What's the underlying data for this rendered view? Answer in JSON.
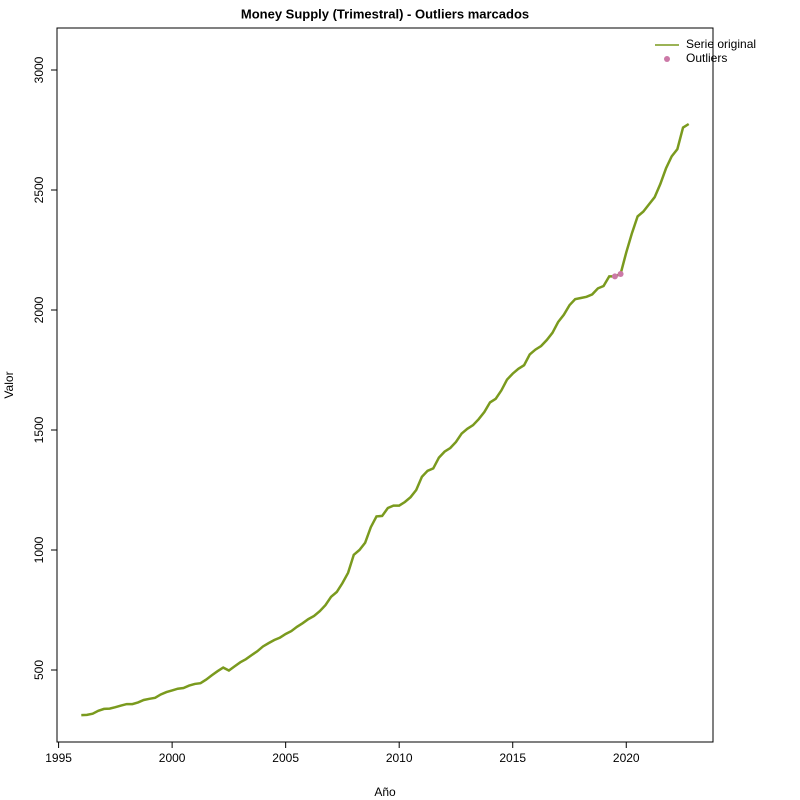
{
  "chart_data": {
    "type": "line",
    "title": "Money Supply (Trimestral) - Outliers marcados",
    "x_label": "Año",
    "y_label": "Valor",
    "xlim": [
      1994.93,
      2023.82
    ],
    "ylim": [
      200,
      3175
    ],
    "xticks": [
      1995,
      2000,
      2005,
      2010,
      2015,
      2020
    ],
    "yticks": [
      500,
      1000,
      1500,
      2000,
      2500,
      3000
    ],
    "legend": "top-right",
    "series": [
      {
        "name": "Serie original",
        "color": "#7a9a1e",
        "kind": "line",
        "x": [
          1996,
          1996.25,
          1996.5,
          1996.75,
          1997,
          1997.25,
          1997.5,
          1997.75,
          1998,
          1998.25,
          1998.5,
          1998.75,
          1999,
          1999.25,
          1999.5,
          1999.75,
          2000,
          2000.25,
          2000.5,
          2000.75,
          2001,
          2001.25,
          2001.5,
          2001.75,
          2002,
          2002.25,
          2002.5,
          2002.75,
          2003,
          2003.25,
          2003.5,
          2003.75,
          2004,
          2004.25,
          2004.5,
          2004.75,
          2005,
          2005.25,
          2005.5,
          2005.75,
          2006,
          2006.25,
          2006.5,
          2006.75,
          2007,
          2007.25,
          2007.5,
          2007.75,
          2008,
          2008.25,
          2008.5,
          2008.75,
          2009,
          2009.25,
          2009.5,
          2009.75,
          2010,
          2010.25,
          2010.5,
          2010.75,
          2011,
          2011.25,
          2011.5,
          2011.75,
          2012,
          2012.25,
          2012.5,
          2012.75,
          2013,
          2013.25,
          2013.5,
          2013.75,
          2014,
          2014.25,
          2014.5,
          2014.75,
          2015,
          2015.25,
          2015.5,
          2015.75,
          2016,
          2016.25,
          2016.5,
          2016.75,
          2017,
          2017.25,
          2017.5,
          2017.75,
          2018,
          2018.25,
          2018.5,
          2018.75,
          2019,
          2019.25,
          2019.5,
          2019.75,
          2020,
          2020.25,
          2020.5,
          2020.75,
          2021,
          2021.25,
          2021.5,
          2021.75,
          2022,
          2022.25,
          2022.5,
          2022.75
        ],
        "values": [
          312,
          313,
          318,
          330,
          338,
          339,
          345,
          352,
          358,
          358,
          365,
          375,
          380,
          384,
          398,
          408,
          415,
          422,
          425,
          435,
          442,
          445,
          460,
          478,
          495,
          510,
          498,
          515,
          532,
          545,
          562,
          578,
          598,
          612,
          625,
          635,
          650,
          662,
          680,
          695,
          712,
          725,
          745,
          770,
          805,
          825,
          862,
          905,
          980,
          1000,
          1030,
          1095,
          1140,
          1142,
          1175,
          1185,
          1185,
          1200,
          1220,
          1250,
          1305,
          1330,
          1340,
          1385,
          1410,
          1425,
          1450,
          1485,
          1505,
          1520,
          1545,
          1575,
          1615,
          1630,
          1665,
          1710,
          1735,
          1755,
          1770,
          1815,
          1835,
          1850,
          1875,
          1905,
          1950,
          1980,
          2020,
          2045,
          2050,
          2055,
          2065,
          2090,
          2100,
          2140,
          2140,
          2150,
          2240,
          2320,
          2390,
          2410,
          2440,
          2470,
          2525,
          2590,
          2640,
          2670,
          2760,
          2775
        ]
      },
      {
        "name": "Outliers",
        "color": "#cc79a7",
        "kind": "points",
        "x": [
          2019.5,
          2019.75
        ],
        "values": [
          2140,
          2150
        ]
      }
    ]
  }
}
